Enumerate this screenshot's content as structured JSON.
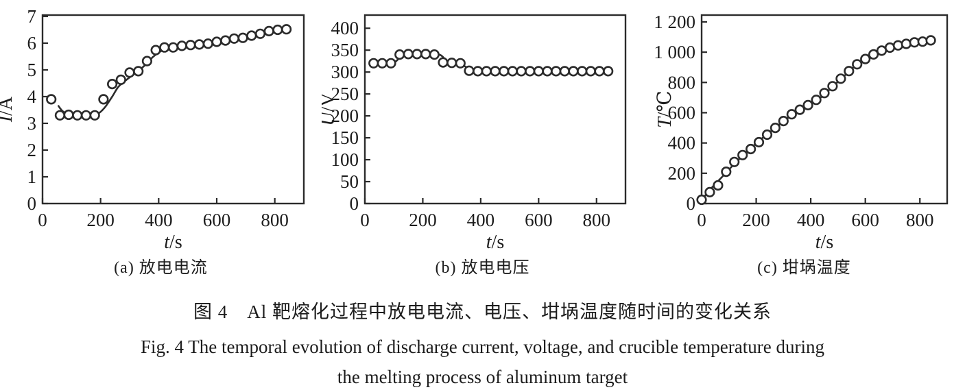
{
  "colors": {
    "ink": "#2b2b2b",
    "text": "#1c1c1c",
    "background": "#ffffff"
  },
  "figure": {
    "caption_zh": "图 4　Al 靶熔化过程中放电电流、电压、坩埚温度随时间的变化关系",
    "caption_en_line1": "Fig. 4    The temporal evolution of discharge current, voltage, and crucible temperature during",
    "caption_en_line2": "the melting process of aluminum target"
  },
  "chart_data": [
    {
      "type": "scatter",
      "subcaption": "(a) 放电电流",
      "xlabel_symbol": "t",
      "xlabel_unit": "s",
      "ylabel_symbol": "I",
      "ylabel_unit": "A",
      "xlim": [
        0,
        900
      ],
      "ylim": [
        0,
        7.05
      ],
      "xticks": [
        0,
        200,
        400,
        600,
        800
      ],
      "xticklabels": [
        "0",
        "200",
        "400",
        "600",
        "800"
      ],
      "yticks": [
        0,
        1,
        2,
        3,
        4,
        5,
        6,
        7
      ],
      "yticklabels": [
        "0",
        "1",
        "2",
        "3",
        "4",
        "5",
        "6",
        "7"
      ],
      "grid": false,
      "legend": null,
      "x": [
        30,
        60,
        90,
        120,
        150,
        180,
        210,
        240,
        270,
        300,
        330,
        360,
        390,
        420,
        450,
        480,
        510,
        540,
        570,
        600,
        630,
        660,
        690,
        720,
        750,
        780,
        810,
        840
      ],
      "y": [
        3.9,
        3.3,
        3.32,
        3.3,
        3.3,
        3.3,
        3.9,
        4.47,
        4.63,
        4.9,
        4.95,
        5.33,
        5.74,
        5.84,
        5.84,
        5.9,
        5.93,
        5.95,
        5.98,
        6.05,
        6.1,
        6.17,
        6.2,
        6.28,
        6.35,
        6.45,
        6.5,
        6.52
      ],
      "trend": [
        [
          55,
          3.65
        ],
        [
          70,
          3.45
        ],
        [
          95,
          3.32
        ],
        [
          130,
          3.3
        ],
        [
          165,
          3.3
        ],
        [
          190,
          3.35
        ],
        [
          215,
          3.6
        ],
        [
          240,
          4.0
        ],
        [
          260,
          4.35
        ],
        [
          280,
          4.55
        ],
        [
          300,
          4.72
        ],
        [
          320,
          4.88
        ],
        [
          340,
          5.05
        ],
        [
          360,
          5.25
        ],
        [
          380,
          5.48
        ],
        [
          400,
          5.65
        ],
        [
          420,
          5.76
        ],
        [
          445,
          5.83
        ],
        [
          480,
          5.88
        ],
        [
          530,
          5.95
        ],
        [
          580,
          6.0
        ],
        [
          630,
          6.1
        ],
        [
          680,
          6.2
        ],
        [
          730,
          6.3
        ],
        [
          780,
          6.42
        ],
        [
          820,
          6.48
        ],
        [
          845,
          6.52
        ]
      ]
    },
    {
      "type": "scatter",
      "subcaption": "(b) 放电电压",
      "xlabel_symbol": "t",
      "xlabel_unit": "s",
      "ylabel_symbol": "U",
      "ylabel_unit": "V",
      "xlim": [
        0,
        900
      ],
      "ylim": [
        0,
        430
      ],
      "xticks": [
        0,
        200,
        400,
        600,
        800
      ],
      "xticklabels": [
        "0",
        "200",
        "400",
        "600",
        "800"
      ],
      "yticks": [
        0,
        50,
        100,
        150,
        200,
        250,
        300,
        350,
        400
      ],
      "yticklabels": [
        "0",
        "50",
        "100",
        "150",
        "200",
        "250",
        "300",
        "350",
        "400"
      ],
      "grid": false,
      "legend": null,
      "x": [
        30,
        60,
        90,
        120,
        150,
        180,
        210,
        240,
        270,
        300,
        330,
        360,
        390,
        420,
        450,
        480,
        510,
        540,
        570,
        600,
        630,
        660,
        690,
        720,
        750,
        780,
        810,
        840
      ],
      "y": [
        320,
        320,
        320,
        340,
        341,
        341,
        341,
        340,
        322,
        321,
        320,
        303,
        302,
        302,
        302,
        302,
        302,
        302,
        302,
        302,
        302,
        302,
        302,
        302,
        302,
        302,
        302,
        302
      ],
      "trend": [
        [
          30,
          320
        ],
        [
          95,
          320
        ],
        [
          130,
          339
        ],
        [
          150,
          341
        ],
        [
          250,
          341
        ],
        [
          285,
          325
        ],
        [
          335,
          316
        ],
        [
          375,
          303
        ],
        [
          400,
          302
        ],
        [
          845,
          302
        ]
      ]
    },
    {
      "type": "scatter",
      "subcaption": "(c) 坩埚温度",
      "xlabel_symbol": "t",
      "xlabel_unit": "s",
      "ylabel_symbol": "T",
      "ylabel_unit": "℃",
      "xlim": [
        0,
        900
      ],
      "ylim": [
        0,
        1245
      ],
      "xticks": [
        0,
        200,
        400,
        600,
        800
      ],
      "xticklabels": [
        "0",
        "200",
        "400",
        "600",
        "800"
      ],
      "yticks": [
        0,
        200,
        400,
        600,
        800,
        1000,
        1200
      ],
      "yticklabels": [
        "0",
        "200",
        "400",
        "600",
        "800",
        "1 000",
        "1 200"
      ],
      "grid": false,
      "legend": null,
      "x": [
        0,
        30,
        60,
        90,
        120,
        150,
        180,
        210,
        240,
        270,
        300,
        330,
        360,
        390,
        420,
        450,
        480,
        510,
        540,
        570,
        600,
        630,
        660,
        690,
        720,
        750,
        780,
        810,
        840
      ],
      "y": [
        25,
        75,
        120,
        210,
        275,
        320,
        360,
        405,
        455,
        500,
        545,
        590,
        620,
        650,
        685,
        730,
        775,
        825,
        875,
        920,
        955,
        985,
        1010,
        1030,
        1045,
        1055,
        1065,
        1070,
        1078
      ],
      "trend": [
        [
          0,
          25
        ],
        [
          40,
          110
        ],
        [
          80,
          185
        ],
        [
          120,
          262
        ],
        [
          160,
          332
        ],
        [
          200,
          398
        ],
        [
          240,
          458
        ],
        [
          280,
          515
        ],
        [
          320,
          570
        ],
        [
          360,
          620
        ],
        [
          400,
          662
        ],
        [
          440,
          705
        ],
        [
          480,
          772
        ],
        [
          520,
          838
        ],
        [
          560,
          905
        ],
        [
          600,
          952
        ],
        [
          640,
          992
        ],
        [
          680,
          1025
        ],
        [
          720,
          1045
        ],
        [
          760,
          1060
        ],
        [
          800,
          1070
        ],
        [
          845,
          1078
        ]
      ]
    }
  ]
}
